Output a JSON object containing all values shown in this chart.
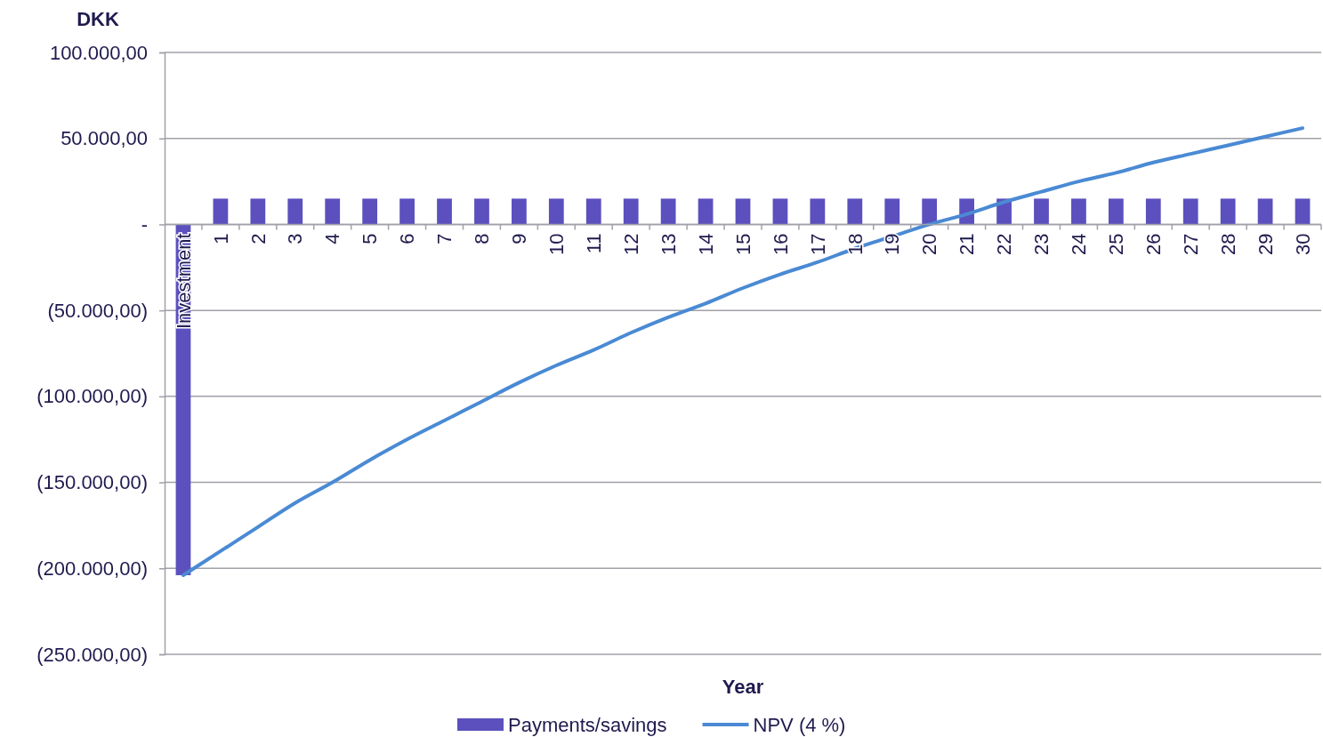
{
  "chart_data": {
    "type": "bar",
    "xlabel": "Year",
    "ylabel": "DKK",
    "categories": [
      "Investment",
      "1",
      "2",
      "3",
      "4",
      "5",
      "6",
      "7",
      "8",
      "9",
      "10",
      "11",
      "12",
      "13",
      "14",
      "15",
      "16",
      "17",
      "18",
      "19",
      "20",
      "21",
      "22",
      "23",
      "24",
      "25",
      "26",
      "27",
      "28",
      "29",
      "30"
    ],
    "series": [
      {
        "name": "Payments/savings",
        "color": "#5b50be",
        "values": [
          -204000,
          15000,
          15000,
          15000,
          15000,
          15000,
          15000,
          15000,
          15000,
          15000,
          15000,
          15000,
          15000,
          15000,
          15000,
          15000,
          15000,
          15000,
          15000,
          15000,
          15000,
          15000,
          15000,
          15000,
          15000,
          15000,
          15000,
          15000,
          15000,
          15000,
          15000
        ]
      },
      {
        "name": "NPV (4 %)",
        "type": "line",
        "color": "#4a8ad4",
        "values": [
          -204000,
          -190000,
          -176000,
          -162000,
          -150000,
          -137000,
          -125000,
          -114000,
          -103000,
          -92000,
          -82000,
          -73000,
          -63000,
          -54000,
          -46000,
          -37000,
          -29000,
          -22000,
          -14000,
          -7000,
          0,
          6000,
          13000,
          19000,
          25000,
          30000,
          36000,
          41000,
          46000,
          51000,
          56000
        ]
      }
    ],
    "ylim": [
      -250000,
      100000
    ],
    "yticks": [
      {
        "value": -250000,
        "label": "(250.000,00)"
      },
      {
        "value": -200000,
        "label": "(200.000,00)"
      },
      {
        "value": -150000,
        "label": "(150.000,00)"
      },
      {
        "value": -100000,
        "label": "(100.000,00)"
      },
      {
        "value": -50000,
        "label": "(50.000,00)"
      },
      {
        "value": 0,
        "label": "-"
      },
      {
        "value": 50000,
        "label": "50.000,00"
      },
      {
        "value": 100000,
        "label": "100.000,00"
      }
    ],
    "grid": "y",
    "legend": "bottom",
    "marker": "none",
    "line_style": "solid"
  }
}
